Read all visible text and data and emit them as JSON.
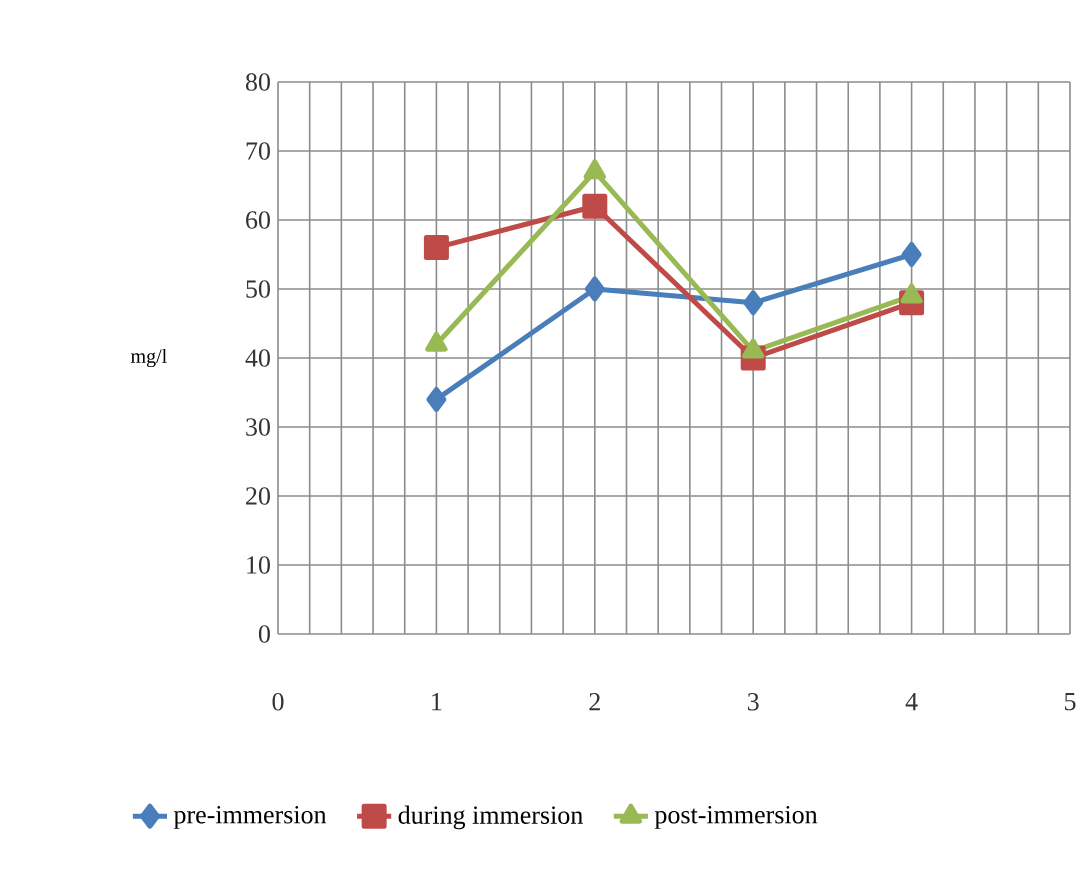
{
  "chart_data": {
    "type": "line",
    "ylabel": "mg/l",
    "x": [
      1,
      2,
      3,
      4
    ],
    "xlim": [
      0,
      5
    ],
    "xticks": [
      0,
      1,
      2,
      3,
      4,
      5
    ],
    "ylim": [
      0,
      80
    ],
    "yticks": [
      0,
      10,
      20,
      30,
      40,
      50,
      60,
      70,
      80
    ],
    "grid": true,
    "legend": "bottom",
    "line_style": "solid",
    "series": [
      {
        "name": "pre-immersion",
        "color": "#4a7ebb",
        "marker": "diamond",
        "values": [
          34,
          50,
          48,
          55
        ]
      },
      {
        "name": "during immersion",
        "color": "#be4b48",
        "marker": "square",
        "values": [
          56,
          62,
          40,
          48
        ]
      },
      {
        "name": "post-immersion",
        "color": "#98b954",
        "marker": "triangle",
        "values": [
          42,
          67,
          41,
          49
        ]
      }
    ]
  }
}
